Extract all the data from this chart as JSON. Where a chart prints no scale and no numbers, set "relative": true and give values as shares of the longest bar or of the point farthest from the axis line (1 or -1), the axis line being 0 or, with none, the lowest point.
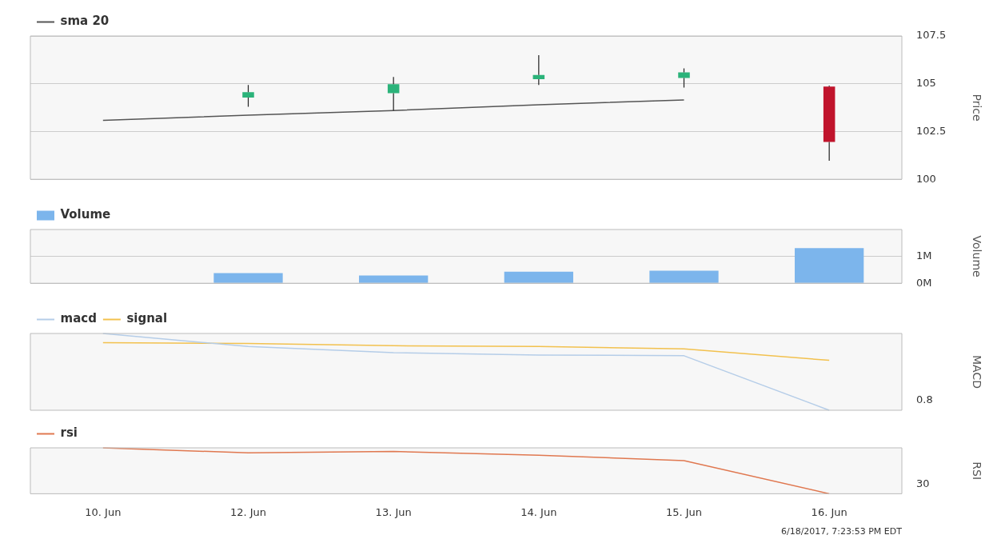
{
  "chart_data": [
    {
      "type": "candlestick",
      "ylabel": "Price",
      "categories": [
        null,
        null,
        null,
        null,
        null,
        null
      ],
      "ylim": [
        100,
        107.5
      ],
      "yticks": [
        100,
        102.5,
        105,
        107.5
      ],
      "grid": "y",
      "legend": "top left",
      "tick_labels": "y",
      "series": [
        {
          "type": "candlestick",
          "colors": [
            null,
            "#2bb37a",
            "#2bb37a",
            "#2bb37a",
            "#2bb37a",
            "#c0142c"
          ],
          "ohlc": [
            null,
            [
              104.28,
              104.94,
              103.8,
              104.56
            ],
            [
              104.51,
              105.36,
              103.6,
              104.98
            ],
            [
              105.24,
              106.5,
              104.94,
              105.46
            ],
            [
              105.3,
              105.8,
              104.8,
              105.6
            ],
            [
              104.85,
              104.9,
              100.97,
              101.95
            ]
          ]
        },
        {
          "type": "line",
          "name": "sma 20",
          "color": "#555555",
          "values": [
            103.08,
            103.36,
            103.6,
            103.9,
            104.15,
            null
          ]
        }
      ]
    },
    {
      "type": "bar",
      "ylabel": "Volume",
      "categories": [
        null,
        null,
        null,
        null,
        null,
        null
      ],
      "ylim": [
        0,
        2
      ],
      "yticks": [
        {
          "value": 0,
          "label": "0M"
        },
        {
          "value": 1,
          "label": "1M"
        }
      ],
      "grid": "y",
      "legend": "top left",
      "tick_labels": "y",
      "series": [
        {
          "name": "Volume",
          "color": "#7cb5ec",
          "values": [
            null,
            0.38,
            0.29,
            0.43,
            0.47,
            1.31
          ]
        }
      ]
    },
    {
      "type": "line",
      "ylabel": "MACD",
      "relative": true,
      "categories": [
        null,
        null,
        null,
        null,
        null,
        null
      ],
      "tick_labels": "y",
      "legend": "top left",
      "annotations": [
        "0.8"
      ],
      "series": [
        {
          "name": "macd",
          "color": "#b5cde8",
          "values": [
            1,
            0.83,
            0.75,
            0.72,
            0.71,
            0
          ]
        },
        {
          "name": "signal",
          "color": "#f2c14e",
          "values": [
            0.88,
            0.87,
            0.84,
            0.83,
            0.8,
            0.65
          ]
        }
      ]
    },
    {
      "type": "line",
      "ylabel": "RSI",
      "relative": true,
      "categories": [
        "10. Jun",
        "12. Jun",
        "13. Jun",
        "14. Jun",
        "15. Jun",
        "16. Jun"
      ],
      "legend": "top left",
      "annotations": [
        "30",
        "6/18/2017, 7:23:53 PM EDT"
      ],
      "series": [
        {
          "name": "rsi",
          "color": "#e07850",
          "values": [
            1,
            0.89,
            0.92,
            0.84,
            0.72,
            0
          ]
        }
      ]
    }
  ]
}
